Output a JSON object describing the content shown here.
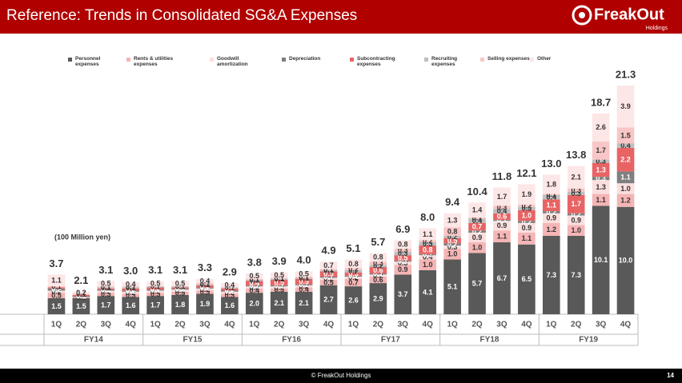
{
  "header": {
    "title": "Reference: Trends in Consolidated SG&A Expenses",
    "logo": "FreakOut",
    "logo_sub": "Holdings"
  },
  "footer": {
    "copyright": "© FreakOut Holdings",
    "page": "14"
  },
  "chart_data": {
    "type": "stacked_bar",
    "unit_note": "(100 Million yen)",
    "categories": [
      "1Q",
      "2Q",
      "3Q",
      "4Q",
      "1Q",
      "2Q",
      "3Q",
      "4Q",
      "1Q",
      "2Q",
      "3Q",
      "4Q",
      "1Q",
      "2Q",
      "3Q",
      "4Q",
      "1Q",
      "2Q",
      "3Q",
      "4Q",
      "1Q",
      "2Q",
      "3Q",
      "4Q"
    ],
    "groups": [
      "FY14",
      "FY15",
      "FY16",
      "FY17",
      "FY18",
      "FY19"
    ],
    "series": [
      {
        "name": "Personnel expenses",
        "color": "#595959",
        "values": [
          1.5,
          1.5,
          1.7,
          1.6,
          1.7,
          1.8,
          1.9,
          1.6,
          2.0,
          2.1,
          2.1,
          2.7,
          2.6,
          2.9,
          3.7,
          4.1,
          5.1,
          5.7,
          6.7,
          6.5,
          7.3,
          7.3,
          10.1,
          10.0
        ],
        "value_labels": [
          "1.5",
          "1.5",
          "1.7",
          "1.6",
          "1.7",
          "1.8",
          "1.9",
          "1.6",
          "2.0",
          "2.1",
          "2.1",
          "2.7",
          "2.6",
          "2.9",
          "3.7",
          "4.1",
          "5.1",
          "5.7",
          "6.7",
          "6.5",
          "7.3",
          "7.3",
          "10.1",
          "10.0"
        ]
      },
      {
        "name": "Rents & utilities expenses",
        "color": "#f5b5b5",
        "values": [
          0.5,
          0.1,
          0.3,
          0.3,
          0.3,
          0.3,
          0.3,
          0.3,
          0.4,
          0.3,
          0.4,
          0.5,
          0.7,
          0.6,
          0.9,
          1.0,
          1.0,
          1.0,
          1.1,
          1.1,
          1.2,
          1.0,
          1.1,
          1.2
        ],
        "value_labels": [
          "0.5",
          "0.1",
          "0.3",
          "0.3",
          "0.3",
          "0.3",
          "0.3",
          "0.3",
          "0.4",
          "0.3",
          "0.4",
          "0.5",
          "0.7",
          "0.6",
          "0.9",
          "1.0",
          "1.0",
          "1.0",
          "1.1",
          "1.1",
          "1.2",
          "1.0",
          "1.1",
          "1.2"
        ]
      },
      {
        "name": "Goodwill amortization",
        "color": "#fbdede",
        "values": [
          0.2,
          0.0,
          0.2,
          0.2,
          0.2,
          0.2,
          0.2,
          0.2,
          0.2,
          0.2,
          0.2,
          0.2,
          0.2,
          0.2,
          0.3,
          0.4,
          0.3,
          0.9,
          0.9,
          0.9,
          0.9,
          0.9,
          1.3,
          1.0
        ],
        "value_labels": [
          "0.2",
          null,
          "0.2",
          "0.2",
          "0.2",
          "0.2",
          "0.2",
          "0.2",
          "0.2",
          "0.2",
          "0.2",
          "0.2",
          "0.2",
          "0.2",
          "0.3",
          "0.4",
          "0.3",
          "0.9",
          "0.9",
          "0.9",
          "0.9",
          "0.9",
          "1.3",
          "1.0"
        ]
      },
      {
        "name": "Depreciation",
        "color": "#7f7f7f",
        "values": [
          0.2,
          0.1,
          0.1,
          0.1,
          0.1,
          0.1,
          0.1,
          0.1,
          0.1,
          0.1,
          0.1,
          0.1,
          0.1,
          0.1,
          0.1,
          0.1,
          0.2,
          0.2,
          0.1,
          0.2,
          0.2,
          0.2,
          0.3,
          1.1
        ],
        "value_labels": [
          "0.2",
          "0.1",
          "0.1",
          "0.1",
          "0.1",
          "0.1",
          "0.1",
          "0.1",
          "0.1",
          "0.1",
          "0.1",
          "0.1",
          "0.1",
          "0.1",
          "0.1",
          "0.1",
          "0.2",
          "0.2",
          "0.1",
          "0.2",
          "0.2",
          "0.2",
          "0.3",
          "1.1"
        ]
      },
      {
        "name": "Subcontracting expenses",
        "color": "#e86464",
        "values": [
          0.1,
          0.1,
          0.1,
          0.2,
          0.2,
          0.1,
          0.2,
          0.2,
          0.4,
          0.5,
          0.5,
          0.5,
          0.3,
          0.6,
          0.5,
          0.8,
          0.5,
          0.7,
          0.6,
          1.0,
          1.1,
          1.7,
          1.3,
          2.2
        ],
        "value_labels": [
          "0.1",
          "0.1",
          "0.1",
          "0.2",
          "0.2",
          "0.1",
          "0.2",
          "0.2",
          "0.4",
          "0.5",
          "0.5",
          "0.5",
          "0.3",
          "0.6",
          "0.5",
          "0.8",
          "0.5",
          "0.7",
          "0.6",
          "1.0",
          "1.1",
          "1.7",
          "1.3",
          "2.2"
        ]
      },
      {
        "name": "Recruiting expenses",
        "color": "#bfbfbf",
        "values": [
          0.0,
          0.0,
          0.1,
          0.1,
          0.1,
          0.1,
          0.1,
          0.1,
          0.1,
          0.1,
          0.1,
          0.1,
          0.2,
          0.2,
          0.3,
          0.3,
          0.2,
          0.4,
          0.4,
          0.3,
          0.4,
          0.3,
          0.3,
          0.4
        ],
        "value_labels": [
          null,
          null,
          "0.1",
          "0.1",
          "0.1",
          "0.1",
          "0.1",
          "0.1",
          "0.1",
          "0.1",
          "0.1",
          "0.1",
          "0.2",
          "0.2",
          "0.3",
          "0.3",
          "0.2",
          "0.4",
          "0.4",
          "0.3",
          "0.4",
          "0.3",
          "0.3",
          "0.4"
        ]
      },
      {
        "name": "Selling expenses",
        "color": "#f8c6c6",
        "values": [
          0.1,
          0.1,
          0.1,
          0.1,
          0.0,
          0.0,
          0.1,
          0.0,
          0.1,
          0.1,
          0.1,
          0.1,
          0.2,
          0.3,
          0.3,
          0.2,
          0.8,
          0.1,
          0.3,
          0.2,
          0.1,
          0.3,
          1.7,
          1.5
        ],
        "value_labels": [
          "0.1",
          "0.1",
          "0.1",
          "0.1",
          null,
          null,
          "0.1",
          null,
          "0.1",
          "0.1",
          "0.1",
          "0.1",
          "0.2",
          "0.3",
          "0.3",
          "0.2",
          "0.8",
          "0.1",
          "0.3",
          "0.2",
          "0.1",
          "0.3",
          "1.7",
          "1.5"
        ]
      },
      {
        "name": "Other",
        "color": "#fde6e6",
        "values": [
          1.1,
          0.2,
          0.5,
          0.4,
          0.5,
          0.5,
          0.4,
          0.4,
          0.5,
          0.5,
          0.5,
          0.7,
          0.8,
          0.8,
          0.8,
          1.1,
          1.3,
          1.4,
          1.7,
          1.9,
          1.8,
          2.1,
          2.6,
          3.9
        ],
        "value_labels": [
          "1.1",
          "0.2",
          "0.5",
          "0.4",
          "0.5",
          "0.5",
          "0.4",
          "0.4",
          "0.5",
          "0.5",
          "0.5",
          "0.7",
          "0.8",
          "0.8",
          "0.8",
          "1.1",
          "1.3",
          "1.4",
          "1.7",
          "1.9",
          "1.8",
          "2.1",
          "2.6",
          "3.9"
        ]
      }
    ],
    "totals": {
      "values": [
        3.7,
        2.1,
        3.1,
        3.0,
        3.1,
        3.1,
        3.3,
        2.9,
        3.8,
        3.9,
        4.0,
        4.9,
        5.1,
        5.7,
        6.9,
        8.0,
        9.4,
        10.4,
        11.8,
        12.1,
        13.0,
        13.8,
        18.7,
        21.3
      ],
      "value_labels": [
        "3.7",
        "2.1",
        "3.1",
        "3.0",
        "3.1",
        "3.1",
        "3.3",
        "2.9",
        "3.8",
        "3.9",
        "4.0",
        "4.9",
        "5.1",
        "5.7",
        "6.9",
        "8.0",
        "9.4",
        "10.4",
        "11.8",
        "12.1",
        "13.0",
        "13.8",
        "18.7",
        "21.3"
      ]
    }
  }
}
